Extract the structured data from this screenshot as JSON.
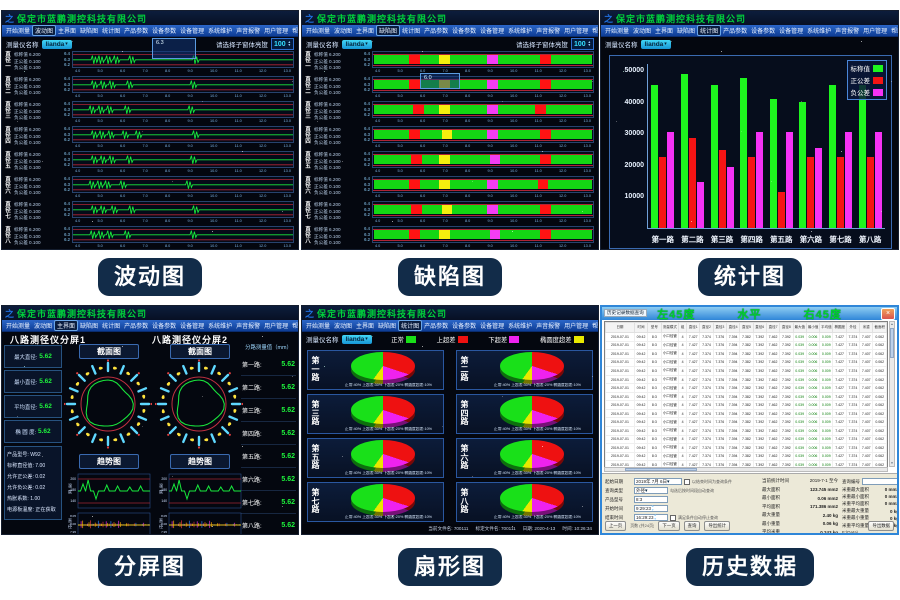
{
  "company": "保定市蓝鹏测控科技有限公司",
  "logo_glyph": "之",
  "menu_items": [
    "开始测量",
    "波动图",
    "主界面",
    "缺陷图",
    "统计图",
    "产品参数",
    "设备参数",
    "设备管理",
    "系统维护",
    "声音报警",
    "用户管理",
    "帮助"
  ],
  "captions": {
    "wave": "波动图",
    "defect": "缺陷图",
    "stats": "统计图",
    "split": "分屏图",
    "fan": "扇形图",
    "history": "历史数据"
  },
  "toolbar": {
    "device_label": "测量仪名称",
    "device_value": "lianda",
    "brightness_label": "请选择子窗体亮度",
    "brightness_value": "100"
  },
  "icons": {
    "caret_down": "▾",
    "spin_up": "▲",
    "spin_down": "▼",
    "close": "×",
    "scroll_up": "▲",
    "scroll_down": "▼",
    "check": "✓"
  },
  "channels": [
    "第一路",
    "第二路",
    "第三路",
    "第四路",
    "第五路",
    "第六路",
    "第七路",
    "第八路"
  ],
  "diameter_rows": {
    "prefix": "直径",
    "names": [
      "一",
      "二",
      "三",
      "四",
      "五",
      "六",
      "七",
      "八"
    ],
    "nominal_label": "标称值",
    "nominal": "6.200",
    "plus_label": "正公差",
    "plus": "0.100",
    "minus_label": "负公差",
    "minus": "0.100",
    "y_ticks": [
      "6.4",
      "6.3",
      "6.2"
    ],
    "x_ticks": [
      "4.0",
      "5.0",
      "6.0",
      "7.0",
      "8.0",
      "9.0",
      "10.0",
      "11.0",
      "12.0",
      "13.0"
    ]
  },
  "wave_panel": {
    "active_menu": "波动图",
    "tooltip_value": "6.3",
    "bumps": [
      [
        0.1,
        0.13,
        0.165,
        0.2,
        0.27,
        0.56
      ],
      [
        0.1,
        0.14,
        0.18,
        0.26,
        0.55
      ],
      [
        0.09,
        0.13,
        0.17,
        0.25,
        0.54
      ],
      [
        0.1,
        0.135,
        0.175,
        0.24,
        0.3,
        0.56
      ],
      [
        0.1,
        0.14,
        0.18,
        0.26,
        0.55
      ],
      [
        0.09,
        0.125,
        0.16,
        0.23,
        0.53
      ],
      [
        0.1,
        0.14,
        0.19,
        0.27,
        0.56
      ],
      [
        0.095,
        0.13,
        0.17,
        0.25,
        0.55
      ]
    ]
  },
  "defect_panel": {
    "active_menu": "缺陷图",
    "tooltip_value": "6.0",
    "colors": {
      "r": "#ff1313",
      "y": "#f5ef0e",
      "m": "#f33df3"
    },
    "defects": [
      [
        [
          0.16,
          "r"
        ],
        [
          0.3,
          "y"
        ],
        [
          0.52,
          "m"
        ],
        [
          0.76,
          "r"
        ]
      ],
      [
        [
          0.16,
          "r"
        ],
        [
          0.3,
          "y"
        ],
        [
          0.52,
          "m"
        ],
        [
          0.76,
          "r"
        ]
      ],
      [
        [
          0.18,
          "r"
        ],
        [
          0.3,
          "y"
        ],
        [
          0.52,
          "m"
        ],
        [
          0.74,
          "r"
        ]
      ],
      [
        [
          0.16,
          "r"
        ],
        [
          0.31,
          "y"
        ],
        [
          0.52,
          "m"
        ],
        [
          0.76,
          "r"
        ]
      ],
      [
        [
          0.17,
          "r"
        ],
        [
          0.3,
          "y"
        ],
        [
          0.53,
          "m"
        ],
        [
          0.76,
          "r"
        ]
      ],
      [
        [
          0.16,
          "r"
        ],
        [
          0.3,
          "y"
        ],
        [
          0.52,
          "m"
        ],
        [
          0.75,
          "r"
        ]
      ],
      [
        [
          0.17,
          "r"
        ],
        [
          0.31,
          "y"
        ],
        [
          0.52,
          "m"
        ],
        [
          0.76,
          "r"
        ]
      ],
      [
        [
          0.16,
          "r"
        ],
        [
          0.3,
          "y"
        ],
        [
          0.53,
          "m"
        ],
        [
          0.76,
          "r"
        ]
      ]
    ]
  },
  "stats_panel": {
    "active_menu": "统计图",
    "chart": {
      "type": "bar",
      "categories": [
        "第一路",
        "第二路",
        "第三路",
        "第四路",
        "第五路",
        "第六路",
        "第七路",
        "第八路"
      ],
      "series": [
        {
          "name": "标称值",
          "color": "#1ef51e",
          "values": [
            45500,
            49000,
            45500,
            47500,
            41000,
            40000,
            45500,
            45500
          ]
        },
        {
          "name": "正公差",
          "color": "#f51414",
          "values": [
            22500,
            28500,
            24800,
            22500,
            11500,
            22500,
            22500,
            22500
          ]
        },
        {
          "name": "负公差",
          "color": "#f532f5",
          "values": [
            30500,
            14500,
            19500,
            30500,
            30500,
            25300,
            30500,
            30500
          ]
        }
      ],
      "yticks": [
        10000,
        20000,
        30000,
        40000,
        50000
      ],
      "ylim": [
        0,
        52000
      ],
      "legend_position": "top-right",
      "grid": false
    }
  },
  "split_panel": {
    "active_menu": "主界面",
    "sections": [
      "八路测径仪分屏1",
      "八路测径仪分屏2"
    ],
    "metrics": [
      {
        "label": "最大直径:",
        "value": "5.62"
      },
      {
        "label": "最小直径:",
        "value": "5.62"
      },
      {
        "label": "平均直径:",
        "value": "5.62"
      },
      {
        "label": "椭 圆 度:",
        "value": "5.62"
      }
    ],
    "product_info": [
      "产品型号: W92",
      "标称直径值: 7.00",
      "允许正公差: 0.02",
      "允许负公差: 0.02",
      "热胀系数: 1.00",
      "电源板温度: 正在获取"
    ],
    "cross_title": "截面图",
    "trend_title": "趋势图",
    "right_header": "分路测量值（mm）",
    "right_values": [
      "5.62",
      "5.62",
      "5.62",
      "5.62",
      "5.62",
      "5.62",
      "5.62",
      "5.62"
    ],
    "trend": {
      "temp_label": "温度",
      "temp_ticks": [
        "200",
        "180",
        "140"
      ],
      "dia_label": "直径",
      "dia_ticks": [
        "8.05",
        "8.00",
        "7.95"
      ],
      "x_ticks": [
        "7750",
        "7900",
        "8050",
        "8200",
        "8350"
      ]
    }
  },
  "fan_panel": {
    "active_menu": "统计图",
    "legend": [
      {
        "label": "正常",
        "color": "#19e019"
      },
      {
        "label": "上超差",
        "color": "#ee1111"
      },
      {
        "label": "下超差",
        "color": "#ee22ee"
      },
      {
        "label": "椭圆度超差",
        "color": "#e8e800"
      }
    ],
    "slices": [
      40,
      30,
      20,
      10
    ],
    "caption": "正常:40%  上超差:30%  下超差:20%  椭圆度超差:10%",
    "status": [
      {
        "label": "当前文件名:",
        "value": "700111"
      },
      {
        "label": "标定文件名:",
        "value": "700111"
      },
      {
        "label": "日期:",
        "value": "2020-4-13"
      },
      {
        "label": "时间:",
        "value": "10:26:34"
      }
    ]
  },
  "history_panel": {
    "overlay_titles": [
      "左45度",
      "水平",
      "右45度"
    ],
    "dialog_title": "历史记录数据查询",
    "table": {
      "columns": [
        "日期",
        "时间",
        "型号",
        "测量模式",
        "组",
        "直径1",
        "直径2",
        "直径3",
        "直径4",
        "直径5",
        "直径6",
        "直径7",
        "直径8",
        "最大值",
        "最小值",
        "平均值",
        "椭圆度",
        "外径",
        "米重",
        "截面积"
      ],
      "row": [
        "2019-07-01",
        "09:42",
        "8:3",
        "小口径管",
        "4",
        "7.427",
        "7.374",
        "7.376",
        "7.394",
        "7.382",
        "7.392",
        "7.462",
        "7.392",
        "0.039",
        "0.006",
        "0.009",
        "7.427",
        "7.374",
        "7.407",
        "0.062"
      ],
      "green_cols": [
        13,
        14,
        15
      ],
      "row_count": 24
    },
    "form": {
      "left_fields": [
        {
          "label": "起始日期",
          "value": "2019年 7月 6日",
          "caret": true
        },
        {
          "label": "查询类型",
          "value": "外径",
          "caret": true
        },
        {
          "label": "产品型号",
          "value": "8:3"
        },
        {
          "label": "开始时间",
          "value": "9:29:23",
          "spin": true
        },
        {
          "label": "结束时间",
          "value": "16:29:23",
          "spin": true
        }
      ],
      "notes": [
        "以结束时间为查询条件",
        "勾选后按时间段自动查询",
        "满足条件自动停止查询"
      ],
      "mid_header": {
        "label": "当前统计时间",
        "value": "2019-7-1 至今"
      },
      "stats_mid": [
        {
          "label": "最大面积",
          "value": "123.745 mm2"
        },
        {
          "label": "最小面积",
          "value": "0.06 mm2"
        },
        {
          "label": "平均面积",
          "value": "171.386 mm2"
        },
        {
          "label": "最大重量",
          "value": "2.40 kg"
        },
        {
          "label": "最小重量",
          "value": "0.06 kg"
        },
        {
          "label": "平均米重",
          "value": "0.243 kg"
        }
      ],
      "right_header": {
        "label": "查询编号",
        "value": ""
      },
      "stats_right": [
        {
          "label": "米重最大面积",
          "value": "0 mm2"
        },
        {
          "label": "米重最小面积",
          "value": "0 mm2"
        },
        {
          "label": "米重平均面积",
          "value": "0 mm2"
        },
        {
          "label": "米重最大重量",
          "value": "0 kg"
        },
        {
          "label": "米重最小重量",
          "value": "0 kg"
        },
        {
          "label": "米重平均重量",
          "value": "0 kg"
        }
      ],
      "path": "F:\\Data\\",
      "buttons": {
        "prev": "上一页",
        "page_info": "页数 (共24页)",
        "next": "下一页",
        "query": "查询",
        "export_stats": "导出统计",
        "print": "打印报表",
        "save_excel": "另存为Excel",
        "export": "导出数据"
      }
    }
  }
}
